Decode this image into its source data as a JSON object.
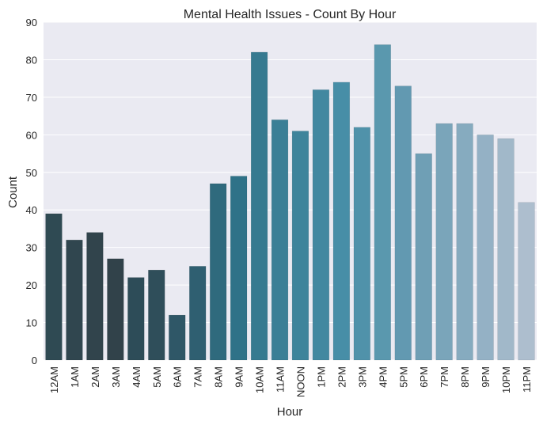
{
  "chart_data": {
    "type": "bar",
    "title": "Mental Health Issues - Count By Hour",
    "xlabel": "Hour",
    "ylabel": "Count",
    "ylim": [
      0,
      90
    ],
    "yticks": [
      0,
      10,
      20,
      30,
      40,
      50,
      60,
      70,
      80,
      90
    ],
    "grid": true,
    "categories": [
      "12AM",
      "1AM",
      "2AM",
      "3AM",
      "4AM",
      "5AM",
      "6AM",
      "7AM",
      "8AM",
      "9AM",
      "10AM",
      "11AM",
      "NOON",
      "1PM",
      "2PM",
      "3PM",
      "4PM",
      "5PM",
      "6PM",
      "7PM",
      "8PM",
      "9PM",
      "10PM",
      "11PM"
    ],
    "values": [
      39,
      32,
      34,
      27,
      22,
      24,
      12,
      25,
      47,
      49,
      82,
      64,
      61,
      72,
      74,
      62,
      84,
      73,
      55,
      63,
      63,
      60,
      59,
      42
    ],
    "colors": [
      "#2f4a53",
      "#30464f",
      "#31444c",
      "#31424a",
      "#2d4c58",
      "#2f4e5a",
      "#2f5767",
      "#2f5f71",
      "#2f6a7d",
      "#2f7288",
      "#367a90",
      "#3b7f96",
      "#3e849b",
      "#4288a0",
      "#478ea7",
      "#5092aa",
      "#5a98ae",
      "#6299b1",
      "#6f9fb5",
      "#7aa5ba",
      "#86abbf",
      "#94b1c5",
      "#a1b8c9",
      "#adbece"
    ],
    "background": "#eaeaf2",
    "gridline_color": "#ffffff"
  }
}
